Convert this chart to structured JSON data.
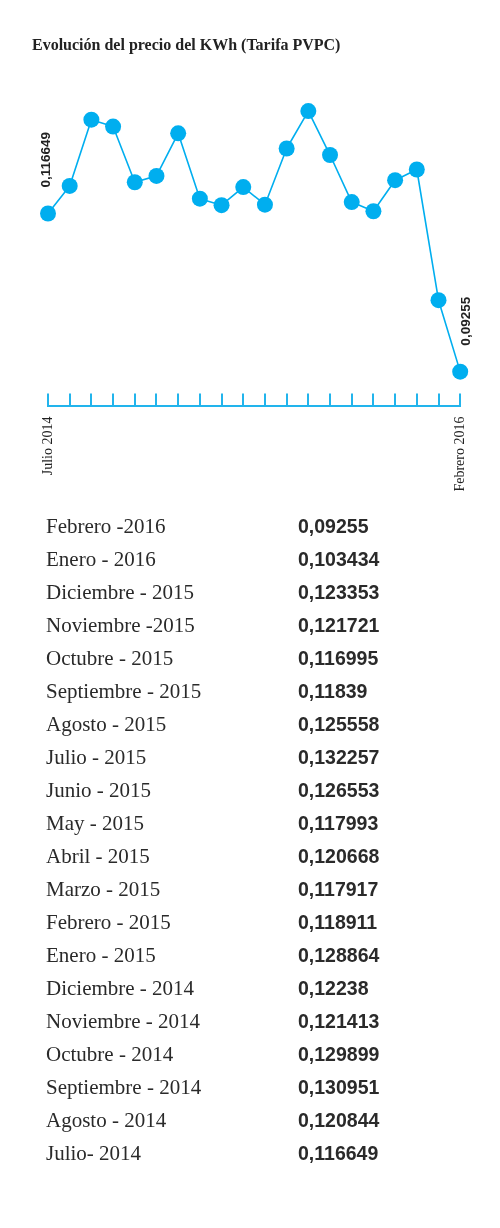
{
  "chart_data": [
    {
      "type": "line",
      "title": "Evolución del precio del KWh (Tarifa PVPC)",
      "categories": [
        "Julio 2014",
        null,
        null,
        null,
        null,
        null,
        null,
        null,
        null,
        null,
        null,
        null,
        null,
        null,
        null,
        null,
        null,
        null,
        null,
        "Febrero 2016"
      ],
      "values": [
        0.116649,
        0.120844,
        0.130951,
        0.129899,
        0.121413,
        0.12238,
        0.128864,
        0.118911,
        0.117917,
        0.120668,
        0.117993,
        0.126553,
        0.132257,
        0.125558,
        0.11839,
        0.116995,
        0.121721,
        0.123353,
        0.103434,
        0.09255
      ],
      "color": "#00aeef",
      "value_labels": [
        "0,116649",
        null,
        null,
        null,
        null,
        null,
        null,
        null,
        null,
        null,
        null,
        null,
        null,
        null,
        null,
        null,
        null,
        null,
        null,
        "0,09255"
      ],
      "marker": "circle",
      "tick_labels": "x"
    },
    {
      "type": "other",
      "categories": [
        "Febrero -2016",
        "Enero - 2016",
        "Diciembre - 2015",
        "Noviembre -2015",
        "Octubre - 2015",
        "Septiembre - 2015",
        "Agosto - 2015",
        "Julio - 2015",
        "Junio - 2015",
        "May - 2015",
        "Abril - 2015",
        "Marzo - 2015",
        "Febrero - 2015",
        "Enero - 2015",
        "Diciembre - 2014",
        "Noviembre - 2014",
        "Octubre - 2014",
        "Septiembre - 2014",
        "Agosto - 2014",
        "Julio- 2014"
      ],
      "value_labels": [
        "0,09255",
        "0,103434",
        "0,123353",
        "0,121721",
        "0,116995",
        "0,11839",
        "0,125558",
        "0,132257",
        "0,126553",
        "0,117993",
        "0,120668",
        "0,117917",
        "0,118911",
        "0,128864",
        "0,12238",
        "0,121413",
        "0,129899",
        "0,130951",
        "0,120844",
        "0,116649"
      ]
    }
  ]
}
